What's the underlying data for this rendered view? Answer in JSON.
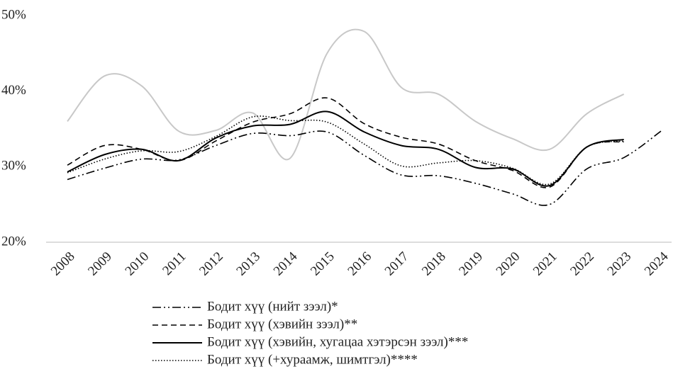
{
  "chart_data": {
    "type": "line",
    "categories": [
      "2008",
      "2009",
      "2010",
      "2011",
      "2012",
      "2013",
      "2014",
      "2015",
      "2016",
      "2017",
      "2018",
      "2019",
      "2020",
      "2021",
      "2022",
      "2023",
      "2024"
    ],
    "series": [
      {
        "name": "Бодит хүү (нийт зээл)*",
        "color": "#000000",
        "dash": "12 4 2 4 2 4",
        "width": 1.6,
        "values": [
          28.3,
          29.8,
          31.0,
          30.9,
          32.8,
          34.4,
          34.1,
          34.6,
          31.5,
          28.9,
          28.8,
          27.8,
          26.4,
          25.0,
          29.7,
          31.2,
          34.7
        ]
      },
      {
        "name": "Бодит хүү (хэвийн зээл)**",
        "color": "#000000",
        "dash": "8 5",
        "width": 1.6,
        "values": [
          30.2,
          32.8,
          32.3,
          30.8,
          33.4,
          35.9,
          37.0,
          39.1,
          35.7,
          33.9,
          33.0,
          30.8,
          29.5,
          27.3,
          32.6,
          33.3,
          null
        ]
      },
      {
        "name": "Бодит хүү (хэвийн, хугацаа хэтэрсэн зээл)***",
        "color": "#000000",
        "dash": "",
        "width": 2,
        "values": [
          29.3,
          31.6,
          32.3,
          30.8,
          33.8,
          35.4,
          35.6,
          37.3,
          34.6,
          32.8,
          32.3,
          29.9,
          29.7,
          27.5,
          32.6,
          33.6,
          null
        ]
      },
      {
        "name": "Бодит хүү (+хураамж, шимтгэл)****",
        "color": "#000000",
        "dash": "1.5 2.5",
        "width": 1.6,
        "values": [
          29.2,
          31.0,
          32.1,
          32.0,
          34.0,
          36.6,
          36.1,
          35.9,
          33.0,
          30.1,
          30.5,
          30.8,
          29.8,
          27.7,
          32.6,
          33.4,
          null
        ]
      },
      {
        "color": "#c8c8c8",
        "dash": "",
        "width": 2,
        "values": [
          36.0,
          42.0,
          40.7,
          34.7,
          34.8,
          37.1,
          31.1,
          45.0,
          47.9,
          40.5,
          39.6,
          36.0,
          33.7,
          32.3,
          37.0,
          39.6,
          null
        ]
      }
    ],
    "ylim": [
      20,
      50
    ],
    "yticks": [
      {
        "value": 20,
        "label": "20%"
      },
      {
        "value": 30,
        "label": "30%"
      },
      {
        "value": 40,
        "label": "40%"
      },
      {
        "value": 50,
        "label": "50%"
      }
    ],
    "grid": false
  }
}
